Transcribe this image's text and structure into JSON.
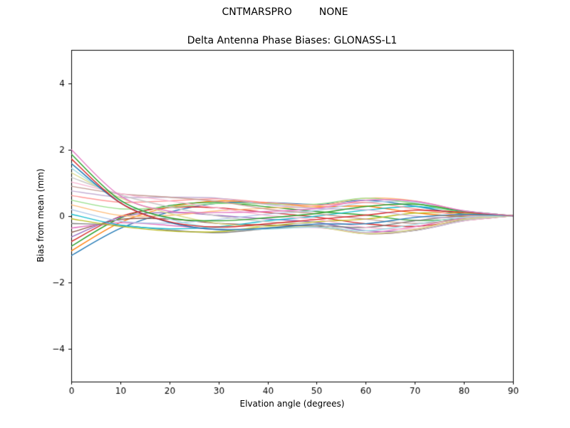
{
  "suptitle": {
    "left": "CNTMARSPRO",
    "right": "NONE"
  },
  "chart_data": {
    "type": "line",
    "title": "Delta Antenna Phase Biases: GLONASS-L1",
    "xlabel": "Elvation angle (degrees)",
    "ylabel": "Bias from mean (mm)",
    "xlim": [
      0,
      90
    ],
    "ylim": [
      -5,
      5
    ],
    "xticks": [
      0,
      10,
      20,
      30,
      40,
      50,
      60,
      70,
      80,
      90
    ],
    "yticks": [
      -4,
      -2,
      0,
      2,
      4
    ],
    "yticklabels": [
      "−4",
      "−2",
      "0",
      "2",
      "4"
    ],
    "grid": false,
    "legend": "none",
    "x": [
      0,
      10,
      20,
      30,
      40,
      50,
      60,
      70,
      80,
      90
    ],
    "series": [
      {
        "color": "#1f77b4",
        "values": [
          -1.2,
          -0.38,
          0.11,
          0.38,
          0.4,
          0.34,
          0.47,
          0.29,
          0.05,
          0.0
        ]
      },
      {
        "color": "#ff7f0e",
        "values": [
          -1.06,
          -0.2,
          0.26,
          0.45,
          0.38,
          0.27,
          0.29,
          0.09,
          -0.02,
          0.0
        ]
      },
      {
        "color": "#2ca02c",
        "values": [
          -0.92,
          -0.07,
          0.31,
          0.4,
          0.27,
          0.13,
          0.02,
          -0.14,
          -0.09,
          0.0
        ]
      },
      {
        "color": "#d62728",
        "values": [
          -0.78,
          -0.02,
          0.25,
          0.24,
          0.1,
          -0.04,
          -0.24,
          -0.32,
          -0.14,
          0.0
        ]
      },
      {
        "color": "#9467bd",
        "values": [
          -0.64,
          -0.04,
          0.1,
          0.01,
          -0.1,
          -0.2,
          -0.45,
          -0.44,
          -0.15,
          0.0
        ]
      },
      {
        "color": "#8c564b",
        "values": [
          -0.5,
          -0.11,
          -0.1,
          -0.23,
          -0.28,
          -0.31,
          -0.54,
          -0.44,
          -0.12,
          0.0
        ]
      },
      {
        "color": "#e377c2",
        "values": [
          -0.37,
          -0.21,
          -0.29,
          -0.41,
          -0.38,
          -0.35,
          -0.51,
          -0.33,
          -0.07,
          0.0
        ]
      },
      {
        "color": "#7f7f7f",
        "values": [
          -0.23,
          -0.29,
          -0.43,
          -0.51,
          -0.39,
          -0.3,
          -0.35,
          -0.15,
          0.0,
          0.0
        ]
      },
      {
        "color": "#bcbd22",
        "values": [
          -0.09,
          -0.32,
          -0.46,
          -0.48,
          -0.31,
          -0.18,
          -0.1,
          0.08,
          0.08,
          0.0
        ]
      },
      {
        "color": "#17becf",
        "values": [
          0.05,
          -0.28,
          -0.39,
          -0.33,
          -0.15,
          -0.01,
          0.17,
          0.28,
          0.13,
          0.0
        ]
      },
      {
        "color": "#aec7e8",
        "values": [
          0.19,
          -0.16,
          -0.22,
          -0.11,
          0.05,
          0.16,
          0.4,
          0.41,
          0.15,
          0.0
        ]
      },
      {
        "color": "#ffbb78",
        "values": [
          0.33,
          0.01,
          0.01,
          0.15,
          0.23,
          0.29,
          0.53,
          0.45,
          0.14,
          0.0
        ]
      },
      {
        "color": "#98df8a",
        "values": [
          0.47,
          0.21,
          0.26,
          0.37,
          0.36,
          0.35,
          0.53,
          0.37,
          0.09,
          0.0
        ]
      },
      {
        "color": "#ff9896",
        "values": [
          0.61,
          0.41,
          0.45,
          0.51,
          0.4,
          0.32,
          0.4,
          0.21,
          0.02,
          0.0
        ]
      },
      {
        "color": "#c5b0d5",
        "values": [
          0.75,
          0.56,
          0.56,
          0.53,
          0.34,
          0.22,
          0.18,
          -0.01,
          -0.06,
          0.0
        ]
      },
      {
        "color": "#c49c94",
        "values": [
          0.89,
          0.66,
          0.56,
          0.43,
          0.2,
          0.06,
          -0.1,
          -0.23,
          -0.11,
          0.0
        ]
      },
      {
        "color": "#f7b6d2",
        "values": [
          1.02,
          0.67,
          0.45,
          0.23,
          0.01,
          -0.11,
          -0.35,
          -0.39,
          -0.15,
          0.0
        ]
      },
      {
        "color": "#c7c7c7",
        "values": [
          1.16,
          0.63,
          0.27,
          -0.01,
          -0.18,
          -0.26,
          -0.51,
          -0.45,
          -0.14,
          0.0
        ]
      },
      {
        "color": "#dbdb8d",
        "values": [
          1.3,
          0.54,
          0.07,
          -0.23,
          -0.33,
          -0.34,
          -0.54,
          -0.41,
          -0.1,
          0.0
        ]
      },
      {
        "color": "#9edae5",
        "values": [
          1.44,
          0.45,
          -0.1,
          -0.38,
          -0.4,
          -0.34,
          -0.45,
          -0.26,
          -0.04,
          0.0
        ]
      },
      {
        "color": "#1f77b4",
        "values": [
          1.58,
          0.39,
          -0.2,
          -0.42,
          -0.37,
          -0.25,
          -0.24,
          -0.05,
          0.04,
          0.0
        ]
      },
      {
        "color": "#d62728",
        "values": [
          1.72,
          0.39,
          -0.18,
          -0.34,
          -0.24,
          -0.11,
          0.02,
          0.17,
          0.1,
          0.0
        ]
      },
      {
        "color": "#2ca02c",
        "values": [
          1.86,
          0.47,
          -0.06,
          -0.15,
          -0.06,
          0.07,
          0.28,
          0.35,
          0.14,
          0.0
        ]
      },
      {
        "color": "#e377c2",
        "values": [
          2.0,
          0.6,
          0.14,
          0.1,
          0.13,
          0.22,
          0.47,
          0.44,
          0.15,
          0.0
        ]
      }
    ]
  }
}
